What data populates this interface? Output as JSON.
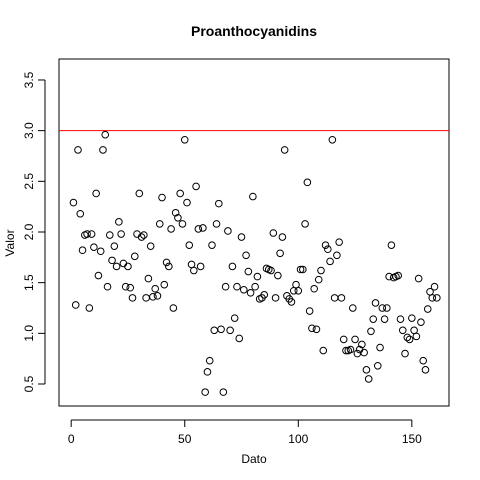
{
  "chart_data": {
    "type": "scatter",
    "title": "Proanthocyanidins",
    "xlabel": "Dato",
    "ylabel": "Valor",
    "xlim": [
      1,
      160
    ],
    "ylim": [
      0.41,
      3.58
    ],
    "xticks": [
      0,
      50,
      100,
      150
    ],
    "yticks": [
      0.5,
      1.0,
      1.5,
      2.0,
      2.5,
      3.0,
      3.5
    ],
    "xtick_labels": [
      "0",
      "50",
      "100",
      "150"
    ],
    "ytick_labels": [
      "0.5",
      "1.0",
      "1.5",
      "2.0",
      "2.5",
      "3.0",
      "3.5"
    ],
    "grid": false,
    "reference_line": {
      "y": 3.0,
      "color": "#ff0000"
    },
    "series": [
      {
        "values": [
          2.29,
          1.28,
          2.81,
          2.18,
          1.82,
          1.97,
          1.98,
          1.25,
          1.98,
          1.85,
          2.38,
          1.57,
          1.81,
          2.81,
          2.96,
          1.46,
          1.97,
          1.72,
          1.86,
          1.66,
          2.1,
          1.98,
          1.69,
          1.46,
          1.66,
          1.45,
          1.35,
          1.76,
          1.98,
          2.38,
          1.95,
          1.97,
          1.35,
          1.54,
          1.86,
          1.36,
          1.44,
          1.37,
          2.08,
          2.34,
          1.48,
          1.7,
          1.66,
          2.03,
          1.25,
          2.19,
          2.14,
          2.38,
          2.08,
          2.91,
          2.29,
          1.87,
          1.68,
          1.62,
          2.45,
          2.03,
          1.66,
          2.04,
          0.42,
          0.62,
          0.73,
          1.87,
          1.03,
          2.08,
          2.28,
          1.04,
          0.42,
          1.46,
          2.01,
          1.03,
          1.66,
          1.15,
          1.46,
          0.95,
          1.95,
          1.43,
          1.77,
          1.61,
          1.4,
          2.35,
          1.46,
          1.56,
          1.34,
          1.35,
          1.38,
          1.64,
          1.63,
          1.62,
          1.99,
          1.35,
          1.57,
          1.79,
          1.95,
          2.81,
          1.37,
          1.34,
          1.31,
          1.42,
          1.48,
          1.42,
          1.63,
          1.63,
          2.08,
          2.49,
          1.22,
          1.05,
          1.44,
          1.04,
          1.53,
          1.62,
          0.83,
          1.87,
          1.83,
          1.71,
          2.91,
          1.35,
          1.77,
          1.9,
          1.35,
          0.94,
          0.83,
          0.83,
          0.84,
          1.25,
          0.94,
          0.8,
          0.84,
          0.89,
          0.81,
          0.64,
          0.55,
          1.02,
          1.14,
          1.3,
          0.68,
          0.86,
          1.25,
          1.14,
          1.25,
          1.56,
          1.87,
          1.55,
          1.56,
          1.57,
          1.14,
          1.03,
          0.8,
          0.96,
          0.94,
          1.15,
          1.03,
          0.97,
          1.54,
          1.11,
          0.73,
          0.64,
          1.24,
          1.41,
          1.35,
          1.46,
          1.35
        ]
      }
    ]
  }
}
